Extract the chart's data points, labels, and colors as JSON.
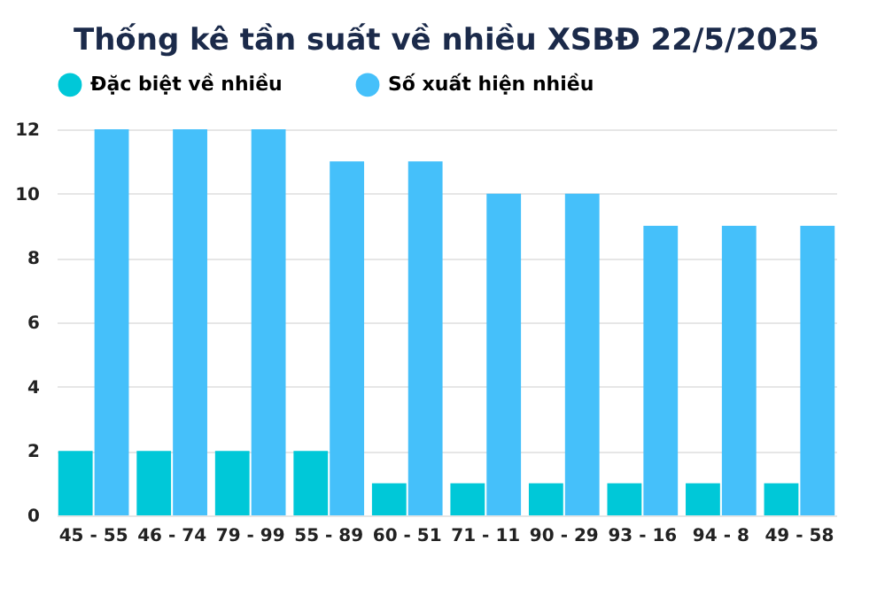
{
  "chart_data": {
    "type": "bar",
    "title": "Thống kê tần suất về nhiều XSBĐ 22/5/2025",
    "categories": [
      "45 - 55",
      "46 - 74",
      "79 - 99",
      "55 - 89",
      "60 - 51",
      "71 - 11",
      "90 - 29",
      "93 - 16",
      "94 - 8",
      "49 - 58"
    ],
    "series": [
      {
        "name": "Đặc biệt về nhiều",
        "color": "#00c8d8",
        "values": [
          2,
          2,
          2,
          2,
          1,
          1,
          1,
          1,
          1,
          1
        ]
      },
      {
        "name": "Số xuất hiện nhiều",
        "color": "#45c0fa",
        "values": [
          12,
          12,
          12,
          11,
          11,
          10,
          10,
          9,
          9,
          9
        ]
      }
    ],
    "ylim": [
      0,
      12
    ],
    "yticks": [
      0,
      2,
      4,
      6,
      8,
      10,
      12
    ],
    "grid": "y",
    "legend": "top"
  }
}
